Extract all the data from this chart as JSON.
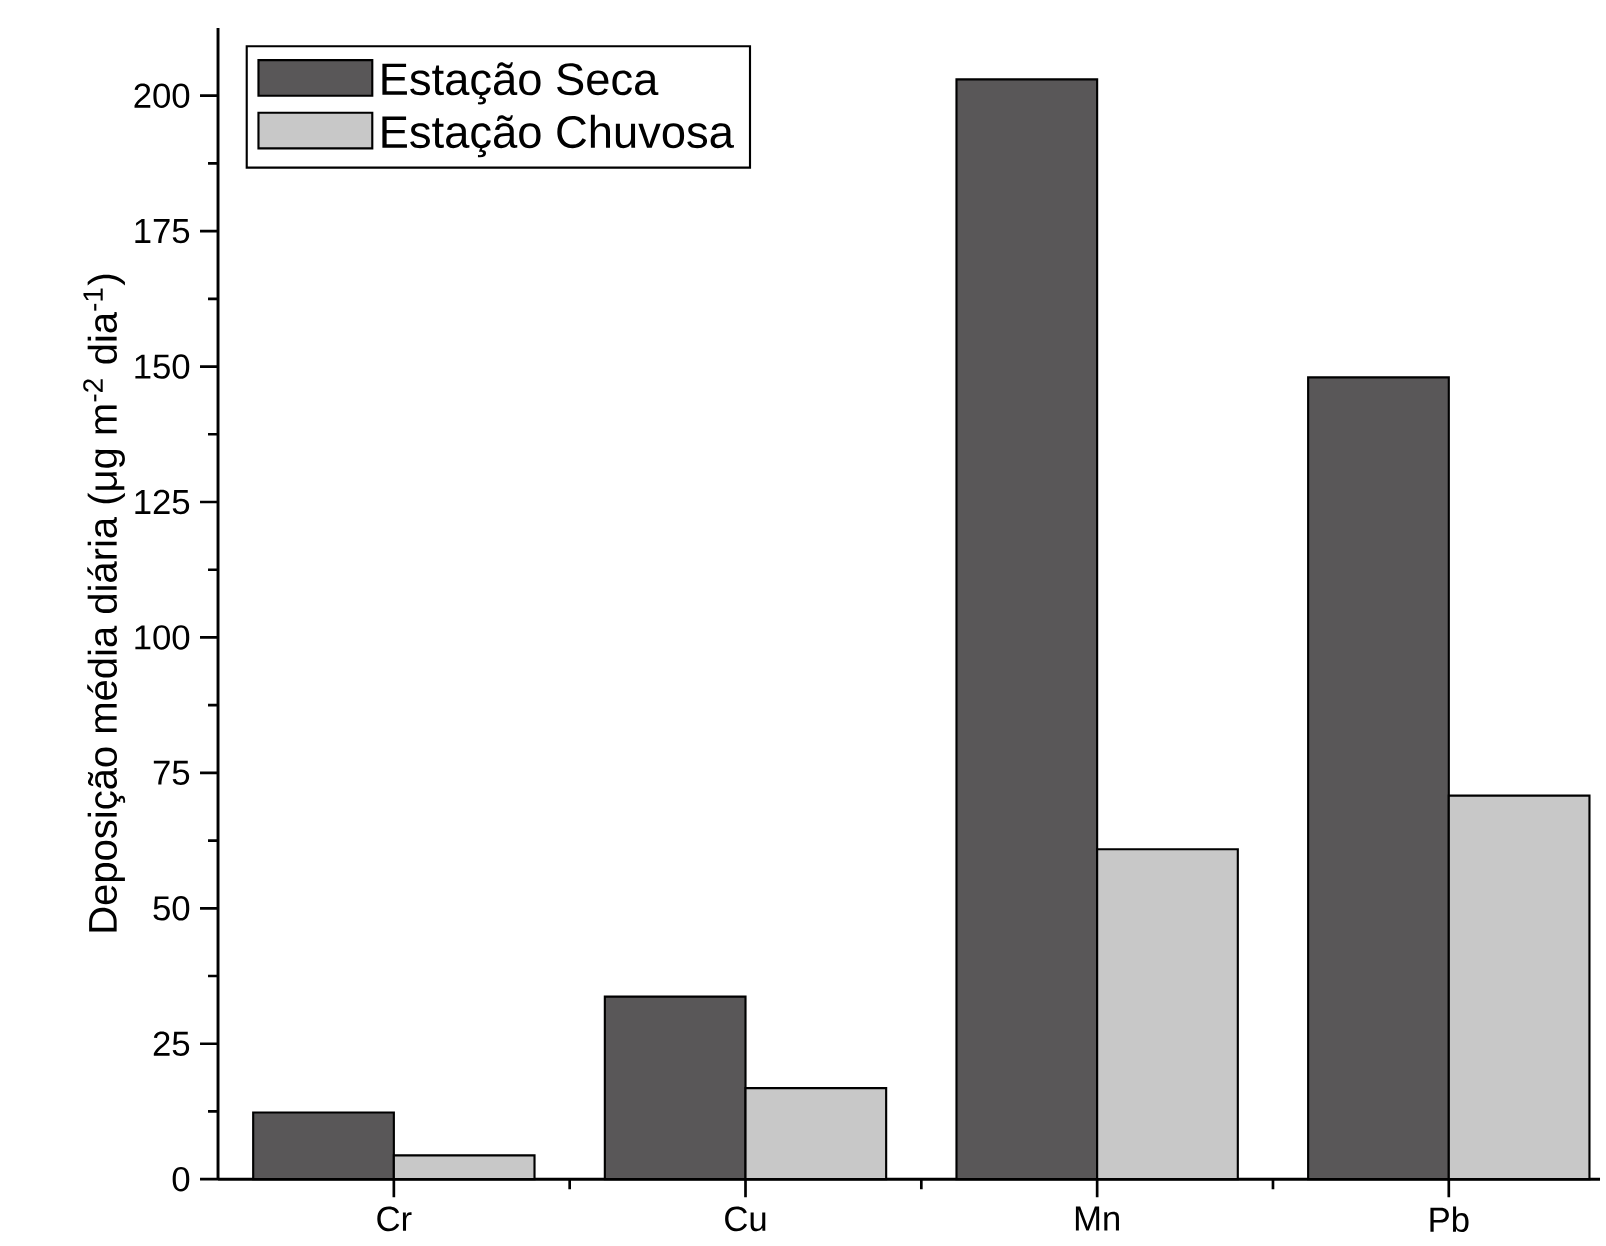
{
  "chart_data": {
    "type": "bar",
    "ylabel": "Deposição média diária (μg m$^{-2}$ dia$^{-1}$)",
    "categories": [
      "Cr",
      "Cu",
      "Mn",
      "Pb"
    ],
    "series": [
      {
        "name": "Estação Seca",
        "color": "#595758",
        "values": [
          12.3,
          33.7,
          203,
          148
        ]
      },
      {
        "name": "Estação Chuvosa",
        "color": "#c8c8c8",
        "values": [
          4.4,
          16.8,
          60.9,
          70.8
        ]
      }
    ],
    "ylim": [
      0,
      212.5
    ],
    "yticks": [
      0,
      25,
      50,
      75,
      100,
      125,
      150,
      175,
      200
    ],
    "legend": "top left",
    "grid": false
  }
}
